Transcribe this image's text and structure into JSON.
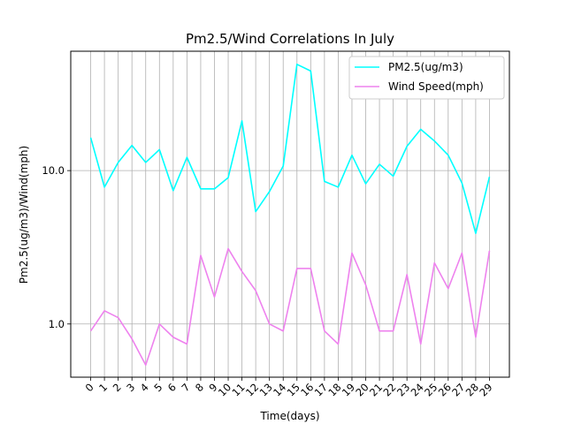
{
  "chart_data": {
    "type": "line",
    "title": "Pm2.5/Wind Correlations In July",
    "xlabel": "Time(days)",
    "ylabel": "Pm2.5(ug/m3)/Wind(mph)",
    "y_scale": "log",
    "ylim": [
      0.45,
      60
    ],
    "x_ticks": [
      "0",
      "1",
      "2",
      "3",
      "4",
      "5",
      "6",
      "7",
      "8",
      "9",
      "10",
      "11",
      "12",
      "13",
      "14",
      "15",
      "16",
      "17",
      "18",
      "19",
      "20",
      "21",
      "22",
      "23",
      "24",
      "25",
      "26",
      "27",
      "28",
      "29"
    ],
    "y_ticks": [
      {
        "value": 1.0,
        "label": "1.0"
      },
      {
        "value": 10.0,
        "label": "10.0"
      }
    ],
    "grid": "vertical lines at every x tick, horizontal lines at major y ticks",
    "legend_position": "top-right",
    "x": [
      0,
      1,
      2,
      3,
      4,
      5,
      6,
      7,
      8,
      9,
      10,
      11,
      12,
      13,
      14,
      15,
      16,
      17,
      18,
      19,
      20,
      21,
      22,
      23,
      24,
      25,
      26,
      27,
      28,
      29
    ],
    "series": [
      {
        "name": "PM2.5(ug/m3)",
        "color": "#00ffff",
        "values": [
          16.4,
          7.8,
          11.3,
          14.6,
          11.3,
          13.7,
          7.4,
          12.2,
          7.6,
          7.6,
          9.0,
          21.1,
          5.4,
          7.3,
          10.7,
          49.3,
          44.6,
          8.5,
          7.8,
          12.6,
          8.2,
          11.0,
          9.2,
          14.4,
          18.6,
          15.6,
          12.6,
          8.3,
          3.9,
          9.1
        ]
      },
      {
        "name": "Wind Speed(mph)",
        "color": "#ee82ee",
        "values": [
          0.9,
          1.22,
          1.1,
          0.8,
          0.54,
          1.0,
          0.82,
          0.74,
          2.8,
          1.5,
          3.1,
          2.2,
          1.65,
          1.0,
          0.9,
          2.3,
          2.3,
          0.9,
          0.74,
          2.9,
          1.8,
          0.9,
          0.9,
          2.1,
          0.74,
          2.5,
          1.7,
          2.9,
          0.82,
          3.0
        ]
      }
    ]
  }
}
